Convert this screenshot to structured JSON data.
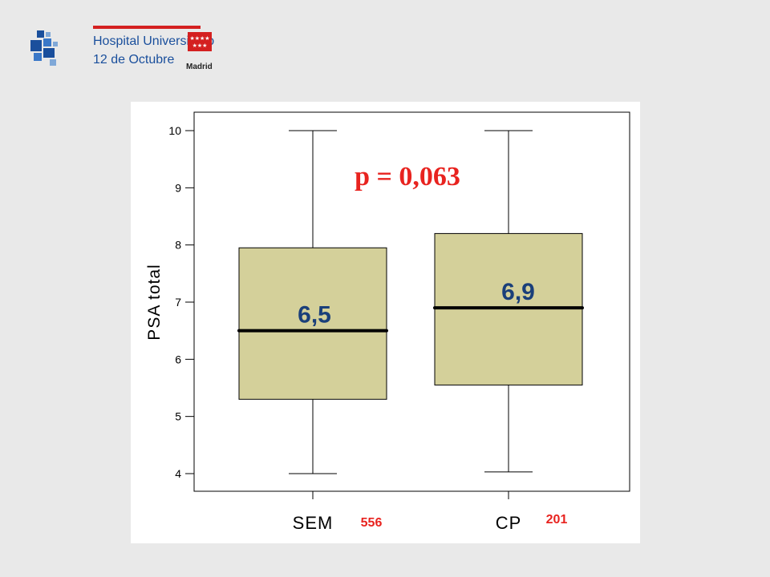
{
  "header": {
    "logo_line1": "Hospital Universitario",
    "logo_line2": "12 de Octubre",
    "region_label": "Madrid"
  },
  "colors": {
    "box_fill": "#d4d09a",
    "median_color": "#000000",
    "annotation_red": "#e8231f",
    "median_label_color": "#1a3f7a",
    "logo_blue": "#1a4f9c"
  },
  "chart_data": {
    "type": "boxplot",
    "ylabel": "PSA total",
    "xlabel": "",
    "ylim": [
      4,
      10
    ],
    "yticks": [
      "4",
      "5",
      "6",
      "7",
      "8",
      "9",
      "10"
    ],
    "grid": false,
    "categories": [
      "SEM",
      "CP"
    ],
    "boxes": [
      {
        "category": "SEM",
        "min": 4.0,
        "q1": 5.3,
        "median": 6.5,
        "q3": 7.95,
        "max": 10.0,
        "median_label": "6,5",
        "n_label": "556"
      },
      {
        "category": "CP",
        "min": 4.03,
        "q1": 5.55,
        "median": 6.9,
        "q3": 8.2,
        "max": 10.0,
        "median_label": "6,9",
        "n_label": "201"
      }
    ],
    "annotation": "p = 0,063"
  }
}
